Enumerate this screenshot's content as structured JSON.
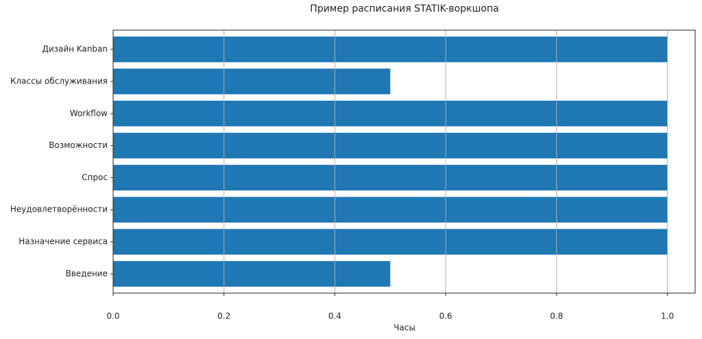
{
  "chart_data": {
    "type": "barh",
    "title": "Пример расписания STATIK-воркшопа",
    "xlabel": "Часы",
    "categories": [
      "Введение",
      "Назначение сервиса",
      "Неудовлетворённости",
      "Спрос",
      "Возможности",
      "Workflow",
      "Классы обслуживания",
      "Дизайн Kanban"
    ],
    "values": [
      0.5,
      1,
      1,
      1,
      1,
      1,
      0.5,
      1
    ],
    "color": "#1f77b4",
    "xlim": [
      0,
      1.05
    ],
    "xticks": [
      {
        "value": 0,
        "label": "0.0"
      },
      0.2,
      0.4,
      0.6,
      0.8,
      {
        "value": 1,
        "label": "1.0"
      }
    ],
    "grid": true
  }
}
